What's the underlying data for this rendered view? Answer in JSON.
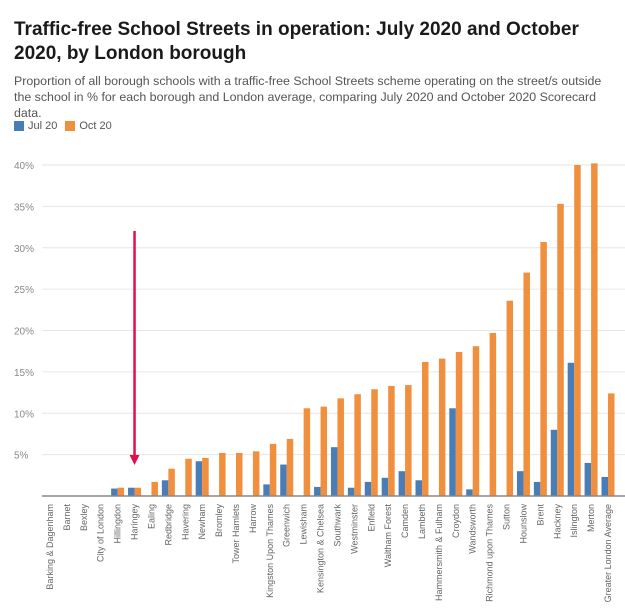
{
  "chart_data": {
    "type": "bar",
    "title": "Traffic-free School Streets in operation: July 2020 and October 2020, by London borough",
    "subtitle": "Proportion of all borough schools with a traffic-free School Streets scheme operating on the street/s outside the school in % for each borough and London average, comparing July 2020 and October 2020 Scorecard data.",
    "xlabel": "",
    "ylabel": "",
    "ylim": [
      0,
      40
    ],
    "yticks": [
      "5%",
      "10%",
      "15%",
      "20%",
      "25%",
      "30%",
      "35%",
      "40%"
    ],
    "grid": true,
    "legend_position": "top-left",
    "categories": [
      "Barking & Dagenham",
      "Barnet",
      "Bexley",
      "City of London",
      "Hillingdon",
      "Haringey",
      "Ealing",
      "Redbridge",
      "Havering",
      "Newham",
      "Bromley",
      "Tower Hamlets",
      "Harrow",
      "Kingston Upon Thames",
      "Greenwich",
      "Lewisham",
      "Kensington & Chelsea",
      "Southwark",
      "Westminster",
      "Enfield",
      "Waltham Forest",
      "Camden",
      "Lambeth",
      "Hammersmith & Fulham",
      "Croydon",
      "Wandsworth",
      "Richmond upon Thames",
      "Sutton",
      "Hounslow",
      "Brent",
      "Hackney",
      "Islington",
      "Merton",
      "Greater London Average"
    ],
    "series": [
      {
        "name": "Jul 20",
        "color": "#4a7db5",
        "values": [
          0,
          0,
          0,
          0,
          0.9,
          1.0,
          0,
          1.9,
          0,
          4.2,
          0,
          0,
          0,
          1.4,
          3.8,
          0,
          1.1,
          5.9,
          1.0,
          1.7,
          2.2,
          3.0,
          1.9,
          0,
          10.6,
          0.8,
          0,
          0,
          3.0,
          1.7,
          8.0,
          16.1,
          4.0,
          2.3
        ]
      },
      {
        "name": "Oct 20",
        "color": "#f0903e",
        "values": [
          0,
          0,
          0,
          0,
          1.0,
          1.0,
          1.7,
          3.3,
          4.5,
          4.6,
          5.2,
          5.2,
          5.4,
          6.3,
          6.9,
          10.6,
          10.8,
          11.8,
          12.3,
          12.9,
          13.3,
          13.4,
          16.2,
          16.6,
          17.4,
          18.1,
          19.7,
          23.6,
          27.0,
          30.7,
          35.3,
          40.0,
          40.2,
          12.4
        ]
      }
    ],
    "annotation": {
      "type": "arrow",
      "target": "Haringey",
      "color": "#e0104a"
    }
  }
}
